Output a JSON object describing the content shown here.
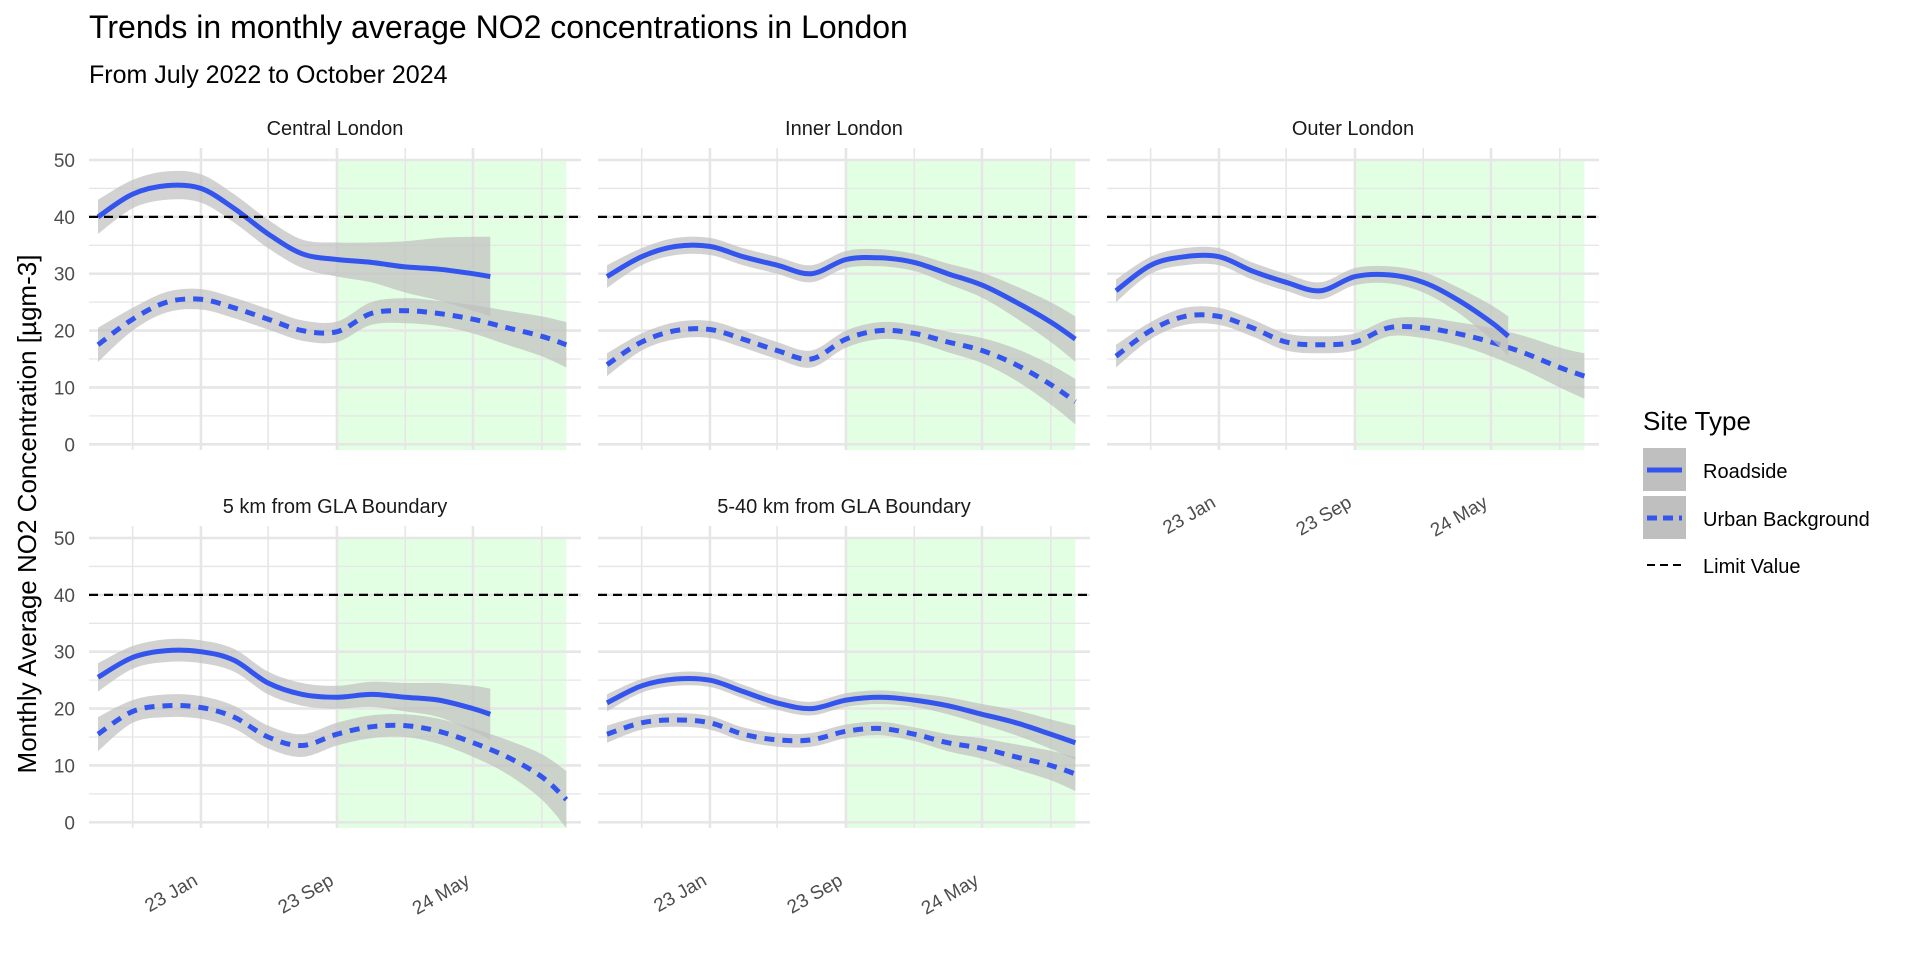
{
  "colors": {
    "roadside": "#3355ee",
    "urban": "#3355ee",
    "ribbon": "#bfbfbf",
    "highlight": "#ccffcc",
    "limit": "#000000",
    "grid": "#e6e6e6"
  },
  "chart_data": {
    "type": "line",
    "title": "Trends in monthly average NO2 concentrations in London",
    "subtitle": "From July 2022 to October 2024",
    "ylabel": "Monthly Average NO2 Concentration [µgm-3]",
    "xlabel": "",
    "x_range": [
      "2022-06-15",
      "2024-11-10"
    ],
    "ylim": [
      -1,
      50
    ],
    "y_ticks": [
      0,
      10,
      20,
      30,
      40,
      50
    ],
    "x_tick_labels": [
      {
        "date": "2023-01-01",
        "label": "23 Jan"
      },
      {
        "date": "2023-09-01",
        "label": "23 Sep"
      },
      {
        "date": "2024-05-01",
        "label": "24 May"
      }
    ],
    "x_grid_dates": [
      "2022-09-01",
      "2023-01-01",
      "2023-05-01",
      "2023-09-01",
      "2024-01-01",
      "2024-05-01",
      "2024-09-01"
    ],
    "limit_value": 40,
    "highlight_start": "2023-09-01",
    "highlight_end": "2024-10-15",
    "grid": true,
    "legend": {
      "title": "Site Type",
      "position": "right",
      "entries": [
        "Roadside",
        "Urban Background",
        "Limit Value"
      ]
    },
    "facets": [
      {
        "name": "Central London",
        "roadside": {
          "x": [
            "2022-07-01",
            "2022-09-01",
            "2022-11-01",
            "2023-01-01",
            "2023-03-01",
            "2023-05-01",
            "2023-07-01",
            "2023-09-01",
            "2023-11-01",
            "2024-01-01",
            "2024-03-01",
            "2024-05-01",
            "2024-06-01"
          ],
          "y": [
            40,
            44,
            45.5,
            45,
            41.5,
            37,
            33.5,
            32.5,
            32,
            31.2,
            30.8,
            30,
            29.5
          ],
          "band": [
            3,
            2.5,
            2.5,
            2.5,
            2.5,
            2.5,
            2.5,
            3,
            3.5,
            4.5,
            5.5,
            6.5,
            7
          ]
        },
        "urban": {
          "x": [
            "2022-07-01",
            "2022-09-01",
            "2022-11-01",
            "2023-01-01",
            "2023-03-01",
            "2023-05-01",
            "2023-07-01",
            "2023-09-01",
            "2023-11-01",
            "2024-01-01",
            "2024-03-01",
            "2024-05-01",
            "2024-07-01",
            "2024-09-01",
            "2024-10-15"
          ],
          "y": [
            17.5,
            22,
            25,
            25.5,
            24,
            22,
            20,
            19.8,
            23,
            23.5,
            23,
            22,
            20.5,
            19,
            17.5
          ],
          "band": [
            3,
            2,
            1.8,
            1.8,
            1.8,
            1.8,
            1.8,
            1.8,
            2,
            2.2,
            2.2,
            2.5,
            3,
            3.5,
            4
          ]
        }
      },
      {
        "name": "Inner London",
        "roadside": {
          "x": [
            "2022-07-01",
            "2022-09-01",
            "2022-11-01",
            "2023-01-01",
            "2023-03-01",
            "2023-05-01",
            "2023-07-01",
            "2023-09-01",
            "2023-11-01",
            "2024-01-01",
            "2024-03-01",
            "2024-05-01",
            "2024-07-01",
            "2024-09-01",
            "2024-10-15"
          ],
          "y": [
            29.5,
            33,
            34.8,
            34.8,
            33,
            31.5,
            30,
            32.5,
            32.8,
            32,
            30,
            28,
            25,
            21.5,
            18.5
          ],
          "band": [
            2,
            1.5,
            1.5,
            1.5,
            1.5,
            1.5,
            1.5,
            1.5,
            1.5,
            1.5,
            1.8,
            2.2,
            2.8,
            3.5,
            4
          ]
        },
        "urban": {
          "x": [
            "2022-07-01",
            "2022-09-01",
            "2022-11-01",
            "2023-01-01",
            "2023-03-01",
            "2023-05-01",
            "2023-07-01",
            "2023-09-01",
            "2023-11-01",
            "2024-01-01",
            "2024-03-01",
            "2024-05-01",
            "2024-07-01",
            "2024-09-01",
            "2024-10-15"
          ],
          "y": [
            14,
            18,
            20,
            20.2,
            18.5,
            16.5,
            15,
            18.5,
            20,
            19.5,
            18,
            16.5,
            14,
            10.5,
            7.5
          ],
          "band": [
            2,
            1.5,
            1.5,
            1.5,
            1.5,
            1.5,
            1.5,
            1.5,
            1.5,
            1.5,
            1.8,
            2.2,
            2.8,
            3.5,
            4
          ]
        }
      },
      {
        "name": "Outer London",
        "roadside": {
          "x": [
            "2022-07-01",
            "2022-09-01",
            "2022-11-01",
            "2023-01-01",
            "2023-03-01",
            "2023-05-01",
            "2023-07-01",
            "2023-09-01",
            "2023-11-01",
            "2024-01-01",
            "2024-03-01",
            "2024-05-01",
            "2024-06-01"
          ],
          "y": [
            27,
            31.5,
            33,
            33,
            30.5,
            28.5,
            27,
            29.5,
            29.8,
            28.5,
            25.5,
            21.5,
            19
          ],
          "band": [
            2,
            1.5,
            1.5,
            1.5,
            1.5,
            1.5,
            1.5,
            1.5,
            1.5,
            1.8,
            2.2,
            3,
            3.5
          ]
        },
        "urban": {
          "x": [
            "2022-07-01",
            "2022-09-01",
            "2022-11-01",
            "2023-01-01",
            "2023-03-01",
            "2023-05-01",
            "2023-07-01",
            "2023-09-01",
            "2023-11-01",
            "2024-01-01",
            "2024-03-01",
            "2024-05-01",
            "2024-07-01",
            "2024-09-01",
            "2024-10-15"
          ],
          "y": [
            15.5,
            20,
            22.5,
            22.5,
            20.5,
            18,
            17.5,
            18,
            20.5,
            20.5,
            19.5,
            18,
            16,
            13.5,
            12
          ],
          "band": [
            2,
            1.5,
            1.5,
            1.5,
            1.5,
            1.5,
            1.5,
            1.5,
            1.5,
            1.8,
            2,
            2.5,
            3,
            3.5,
            4
          ]
        }
      },
      {
        "name": "5 km from GLA Boundary",
        "roadside": {
          "x": [
            "2022-07-01",
            "2022-09-01",
            "2022-11-01",
            "2023-01-01",
            "2023-03-01",
            "2023-05-01",
            "2023-07-01",
            "2023-09-01",
            "2023-11-01",
            "2024-01-01",
            "2024-03-01",
            "2024-05-01",
            "2024-06-01"
          ],
          "y": [
            25.5,
            29,
            30.2,
            30,
            28.5,
            24.5,
            22.5,
            22,
            22.5,
            22,
            21.5,
            20,
            19
          ],
          "band": [
            2.5,
            2,
            2,
            2,
            2,
            2,
            2,
            2,
            2.2,
            2.5,
            3,
            4,
            4.5
          ]
        },
        "urban": {
          "x": [
            "2022-07-01",
            "2022-09-01",
            "2022-11-01",
            "2023-01-01",
            "2023-03-01",
            "2023-05-01",
            "2023-07-01",
            "2023-09-01",
            "2023-11-01",
            "2024-01-01",
            "2024-03-01",
            "2024-05-01",
            "2024-07-01",
            "2024-09-01",
            "2024-10-15"
          ],
          "y": [
            15.5,
            19.5,
            20.5,
            20.2,
            18.5,
            15,
            13.5,
            15.5,
            16.8,
            17,
            16,
            14,
            11.5,
            8,
            4
          ],
          "band": [
            3,
            2,
            2,
            2,
            2,
            2,
            2,
            2,
            2,
            2,
            2.2,
            2.5,
            3,
            4,
            5
          ]
        }
      },
      {
        "name": "5-40 km from GLA Boundary",
        "roadside": {
          "x": [
            "2022-07-01",
            "2022-09-01",
            "2022-11-01",
            "2023-01-01",
            "2023-03-01",
            "2023-05-01",
            "2023-07-01",
            "2023-09-01",
            "2023-11-01",
            "2024-01-01",
            "2024-03-01",
            "2024-05-01",
            "2024-07-01",
            "2024-09-01",
            "2024-10-15"
          ],
          "y": [
            21,
            24,
            25.2,
            25,
            23,
            21,
            20,
            21.5,
            22,
            21.5,
            20.5,
            19,
            17.5,
            15.5,
            14
          ],
          "band": [
            1.5,
            1.2,
            1.2,
            1.2,
            1.2,
            1.2,
            1.2,
            1.2,
            1.2,
            1.2,
            1.5,
            1.8,
            2.2,
            2.6,
            3
          ]
        },
        "urban": {
          "x": [
            "2022-07-01",
            "2022-09-01",
            "2022-11-01",
            "2023-01-01",
            "2023-03-01",
            "2023-05-01",
            "2023-07-01",
            "2023-09-01",
            "2023-11-01",
            "2024-01-01",
            "2024-03-01",
            "2024-05-01",
            "2024-07-01",
            "2024-09-01",
            "2024-10-15"
          ],
          "y": [
            15.5,
            17.5,
            18,
            17.5,
            15.5,
            14.5,
            14.5,
            16,
            16.5,
            15.5,
            14,
            13,
            11.5,
            10,
            8.5
          ],
          "band": [
            1.5,
            1.2,
            1.2,
            1.2,
            1.2,
            1.2,
            1.2,
            1.2,
            1.2,
            1.2,
            1.5,
            1.8,
            2.2,
            2.6,
            3
          ]
        }
      }
    ]
  }
}
